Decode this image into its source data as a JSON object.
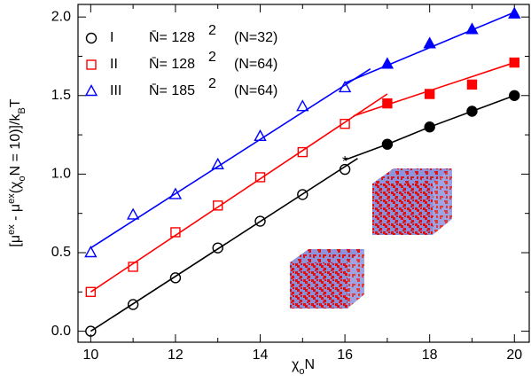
{
  "chart_data": {
    "type": "scatter",
    "xlabel_parts": [
      {
        "t": "χ"
      },
      {
        "t": "o",
        "sub": true
      },
      {
        "t": "N"
      }
    ],
    "ylabel_parts": [
      {
        "t": "[μ"
      },
      {
        "t": "ex",
        "sup": true
      },
      {
        "t": " - μ"
      },
      {
        "t": "ex",
        "sup": true
      },
      {
        "t": "(χ"
      },
      {
        "t": "o",
        "sub": true
      },
      {
        "t": "N = 10)]/k"
      },
      {
        "t": "B",
        "sub": true
      },
      {
        "t": "T"
      }
    ],
    "xlim": [
      9.7,
      20.35
    ],
    "ylim": [
      -0.07,
      2.08
    ],
    "xticks": [
      10,
      12,
      14,
      16,
      18,
      20
    ],
    "yticks": [
      {
        "value": 0,
        "label": "0.0"
      },
      {
        "value": 0.5,
        "label": "0.5"
      },
      {
        "value": 1,
        "label": "1.0"
      },
      {
        "value": 1.5,
        "label": "1.5"
      },
      {
        "value": 2,
        "label": "2.0"
      }
    ],
    "xminor": [
      11,
      13,
      15,
      17,
      19
    ],
    "yminor": [
      0.25,
      0.75,
      1.25,
      1.75
    ],
    "series": [
      {
        "name": "I",
        "nbar": "N̄= 128",
        "sup": "2",
        "n": "(N=32)",
        "marker": "circle",
        "color": "#000000",
        "x": [
          10,
          11,
          12,
          13,
          14,
          15,
          16,
          17,
          18,
          19,
          20
        ],
        "values": [
          0.0,
          0.17,
          0.34,
          0.53,
          0.7,
          0.87,
          1.03,
          1.19,
          1.3,
          1.4,
          1.5
        ],
        "filled": [
          false,
          false,
          false,
          false,
          false,
          false,
          false,
          true,
          true,
          true,
          true
        ],
        "fits": [
          {
            "x": [
              10,
              16.3
            ],
            "y": [
              0.0,
              1.1
            ]
          },
          {
            "x": [
              16,
              17,
              18,
              19,
              20
            ],
            "y": [
              1.09,
              1.19,
              1.3,
              1.4,
              1.5
            ]
          }
        ]
      },
      {
        "name": "II",
        "nbar": "N̄= 128",
        "sup": "2",
        "n": "(N=64)",
        "marker": "square",
        "color": "#ff0000",
        "x": [
          10,
          11,
          12,
          13,
          14,
          15,
          16,
          17,
          18,
          19,
          20
        ],
        "values": [
          0.25,
          0.41,
          0.63,
          0.8,
          0.98,
          1.14,
          1.32,
          1.45,
          1.51,
          1.57,
          1.71
        ],
        "filled": [
          false,
          false,
          false,
          false,
          false,
          false,
          false,
          true,
          true,
          true,
          true
        ],
        "fits": [
          {
            "x": [
              10,
              17
            ],
            "y": [
              0.25,
              1.51
            ]
          },
          {
            "x": [
              16.2,
              20
            ],
            "y": [
              1.37,
              1.71
            ]
          }
        ]
      },
      {
        "name": "III",
        "nbar": "N̄= 185",
        "sup": "2",
        "n": "(N=64)",
        "marker": "triangle",
        "color": "#0000ff",
        "x": [
          10,
          11,
          12,
          13,
          14,
          15,
          16,
          17,
          18,
          19,
          20
        ],
        "values": [
          0.5,
          0.74,
          0.87,
          1.06,
          1.24,
          1.43,
          1.55,
          1.7,
          1.83,
          1.92,
          2.02
        ],
        "filled": [
          false,
          false,
          false,
          false,
          false,
          false,
          false,
          true,
          true,
          true,
          true
        ],
        "fits": [
          {
            "x": [
              10,
              16.6
            ],
            "y": [
              0.53,
              1.67
            ]
          },
          {
            "x": [
              16,
              20
            ],
            "y": [
              1.58,
              2.03
            ]
          }
        ]
      }
    ],
    "star": {
      "x": 16,
      "y": 1.08
    }
  }
}
